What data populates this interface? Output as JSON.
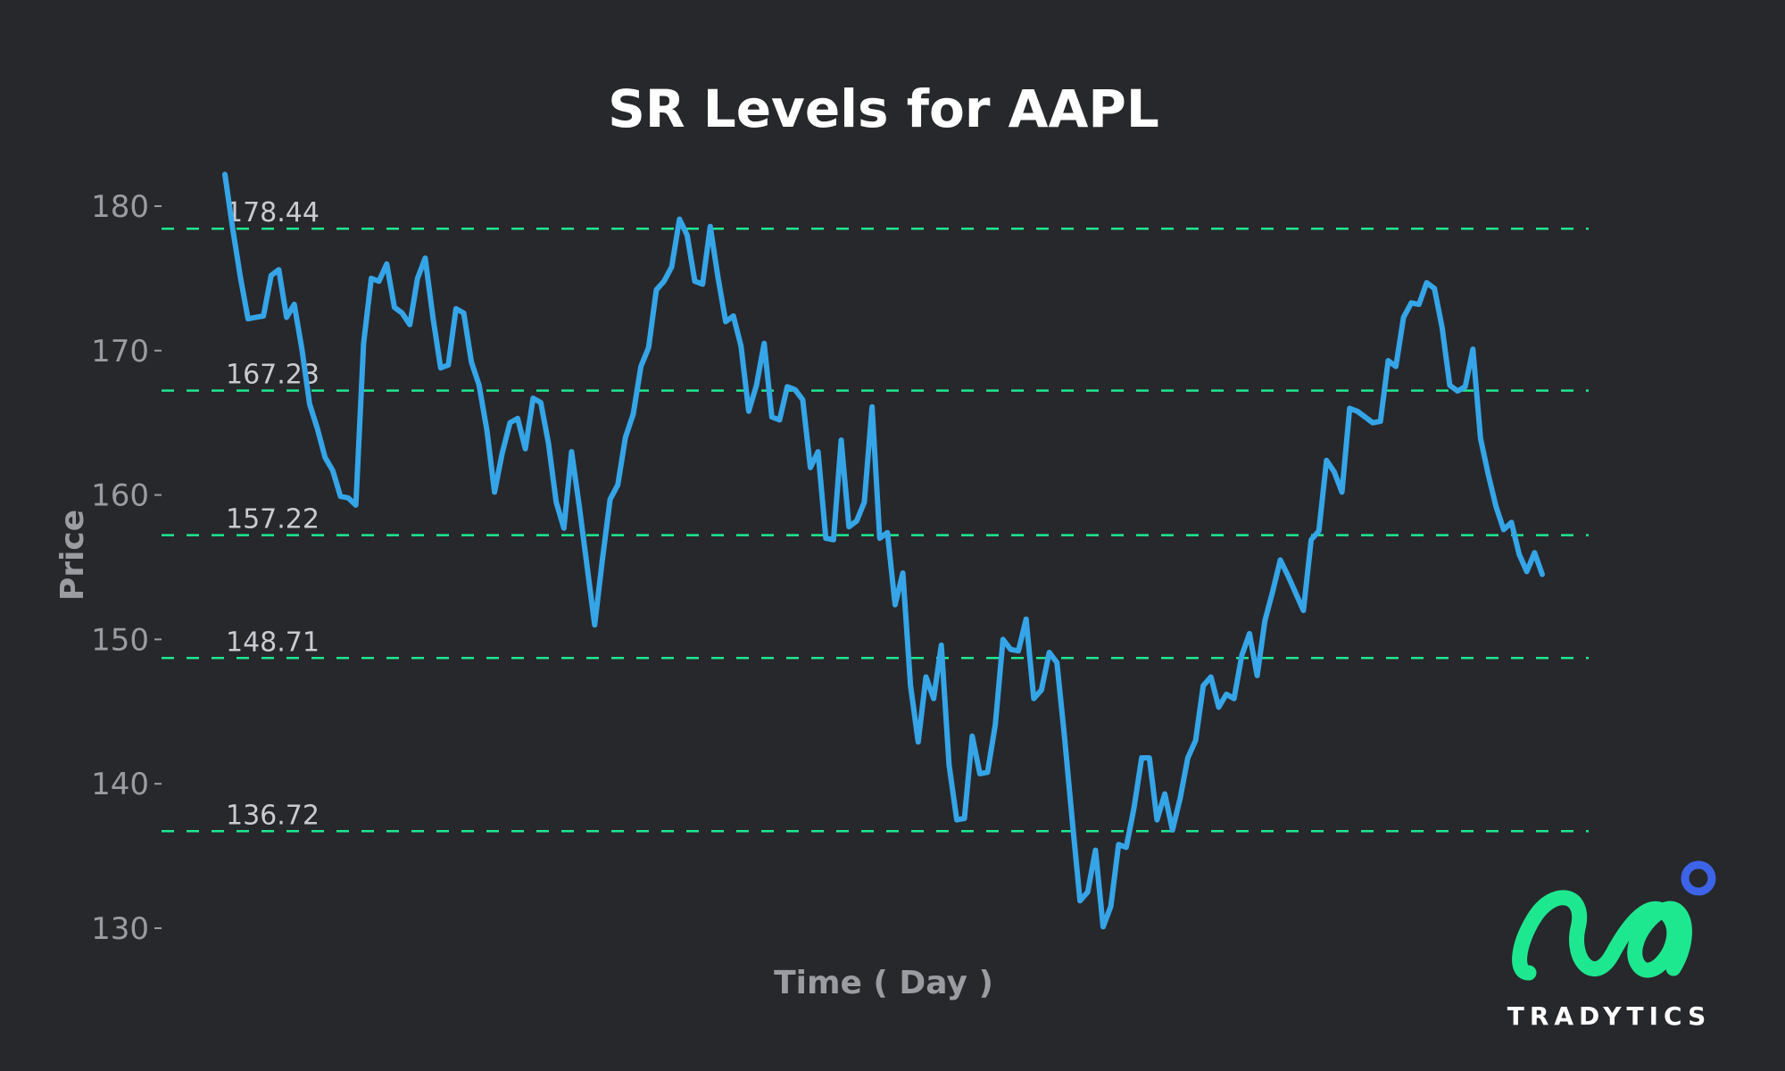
{
  "chart_data": {
    "type": "line",
    "title": "SR Levels for AAPL",
    "xlabel": "Time ( Day )",
    "ylabel": "Price",
    "ylim": [
      128,
      184
    ],
    "yticks": [
      130,
      140,
      150,
      160,
      170,
      180
    ],
    "grid": false,
    "series": [
      {
        "name": "AAPL",
        "color": "#35a5e8",
        "values": [
          182.2,
          178.5,
          175.1,
          172.2,
          172.3,
          172.4,
          175.2,
          175.6,
          172.3,
          173.2,
          170.1,
          166.3,
          164.6,
          162.6,
          161.7,
          159.9,
          159.8,
          159.3,
          170.5,
          175.0,
          174.8,
          176.0,
          173.0,
          172.6,
          171.8,
          175.0,
          176.4,
          172.3,
          168.8,
          169.0,
          172.9,
          172.6,
          169.2,
          167.6,
          164.5,
          160.2,
          162.9,
          165.0,
          165.3,
          163.2,
          166.7,
          166.4,
          163.6,
          159.5,
          157.7,
          163.0,
          159.2,
          155.1,
          151.0,
          155.5,
          159.7,
          160.7,
          164.0,
          165.6,
          168.9,
          170.2,
          174.2,
          174.8,
          175.8,
          179.1,
          178.0,
          174.8,
          174.6,
          178.6,
          175.1,
          172.0,
          172.4,
          170.3,
          165.8,
          167.6,
          170.5,
          165.4,
          165.2,
          167.5,
          167.3,
          166.6,
          161.9,
          163.0,
          157.0,
          156.9,
          163.8,
          157.8,
          158.2,
          159.5,
          166.1,
          157.0,
          157.4,
          152.4,
          154.6,
          146.8,
          142.9,
          147.4,
          145.9,
          149.6,
          141.3,
          137.5,
          137.6,
          143.3,
          140.7,
          140.8,
          144.1,
          150.0,
          149.3,
          149.2,
          151.4,
          145.9,
          146.5,
          149.1,
          148.4,
          143.2,
          137.4,
          131.9,
          132.5,
          135.4,
          130.1,
          131.5,
          135.8,
          135.6,
          138.3,
          141.8,
          141.8,
          137.5,
          139.3,
          136.8,
          139.0,
          141.8,
          143.0,
          146.8,
          147.4,
          145.3,
          146.2,
          145.9,
          148.9,
          150.4,
          147.5,
          151.3,
          153.3,
          155.5,
          154.4,
          153.2,
          152.0,
          156.9,
          157.5,
          162.4,
          161.6,
          160.2,
          166.0,
          165.8,
          165.4,
          165.0,
          165.1,
          169.3,
          168.9,
          172.3,
          173.3,
          173.2,
          174.7,
          174.3,
          171.6,
          167.6,
          167.2,
          167.5,
          170.1,
          163.9,
          161.4,
          159.2,
          157.6,
          158.1,
          155.9,
          154.7,
          156.0,
          154.5
        ]
      }
    ],
    "levels": [
      {
        "value": 178.44,
        "label": "178.44"
      },
      {
        "value": 167.23,
        "label": "167.23"
      },
      {
        "value": 157.22,
        "label": "157.22"
      },
      {
        "value": 148.71,
        "label": "148.71"
      },
      {
        "value": 136.72,
        "label": "136.72"
      }
    ],
    "level_color": "#1ee88f"
  },
  "branding": {
    "name": "TRADYTICS",
    "logo_color": "#1ee88f",
    "dot_color": "#3d63e8"
  }
}
